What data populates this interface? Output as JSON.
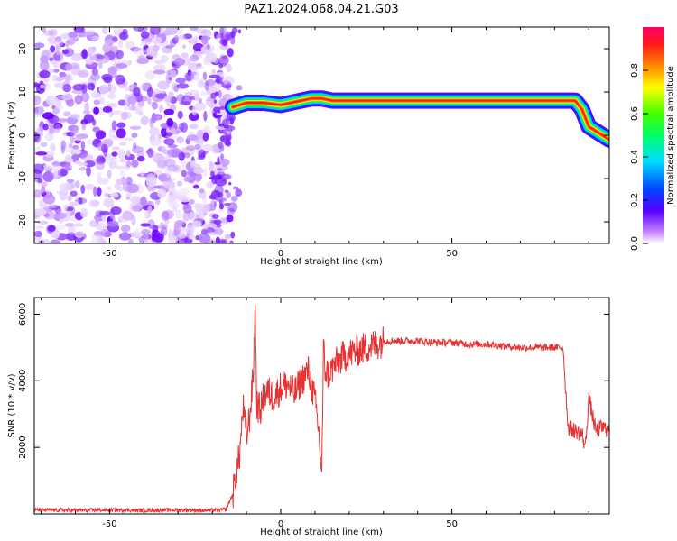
{
  "title": "PAZ1.2024.068.04.21.G03",
  "chart_data": [
    {
      "type": "heatmap",
      "xlabel": "Height of straight line (km)",
      "ylabel": "Frequency (Hz)",
      "xlim": [
        -72,
        96
      ],
      "ylim": [
        -25,
        25
      ],
      "xticks": [
        -50,
        0,
        50
      ],
      "yticks": [
        -20,
        -10,
        0,
        10,
        20
      ],
      "noise_region_x": [
        -72,
        -14
      ],
      "signal_ridge": {
        "x": [
          -14,
          -10,
          -5,
          0,
          3,
          6,
          9,
          12,
          15,
          20,
          30,
          50,
          70,
          82,
          86,
          88,
          90,
          92,
          94,
          96
        ],
        "frequency": [
          6.5,
          7.5,
          7.5,
          7,
          7.5,
          8,
          8.5,
          8.5,
          8,
          8,
          8,
          8,
          8,
          8,
          8,
          6,
          2,
          1,
          0,
          -1
        ]
      },
      "colorbar": {
        "label": "Normalized spectral amplitude",
        "ticks": [
          0.0,
          0.2,
          0.4,
          0.6,
          0.8
        ],
        "range": [
          0,
          1
        ],
        "colors": [
          "#ffffff",
          "#cc66ff",
          "#4400ff",
          "#0066ff",
          "#00ffff",
          "#00ff00",
          "#ffff00",
          "#ff6600",
          "#ff0033",
          "#ff0066"
        ]
      }
    },
    {
      "type": "line",
      "xlabel": "Height of straight line (km)",
      "ylabel": "SNR (10 * v/v)",
      "xlim": [
        -72,
        96
      ],
      "ylim": [
        0,
        6500
      ],
      "xticks": [
        -50,
        0,
        50
      ],
      "yticks": [
        2000,
        4000,
        6000
      ],
      "color": "#e53232",
      "series": [
        {
          "x": [
            -72,
            -60,
            -50,
            -40,
            -30,
            -20,
            -16,
            -14,
            -12,
            -11,
            -10,
            -9,
            -8,
            -7.5,
            -7,
            -6,
            -5,
            -4,
            -2,
            0,
            2,
            4,
            6,
            8,
            10,
            11,
            12,
            12.5,
            13,
            14,
            16,
            18,
            20,
            22,
            25,
            28,
            30,
            35,
            40,
            45,
            50,
            55,
            60,
            65,
            70,
            75,
            80,
            82.5,
            83,
            84,
            86,
            88,
            89,
            90,
            92,
            94,
            96
          ],
          "values": [
            120,
            110,
            120,
            110,
            120,
            110,
            130,
            600,
            1800,
            3200,
            2300,
            3000,
            4200,
            6400,
            3300,
            3100,
            3500,
            3700,
            3500,
            3800,
            3900,
            3600,
            4000,
            4300,
            3400,
            2600,
            1200,
            5000,
            4300,
            4200,
            4500,
            4700,
            4800,
            4900,
            5000,
            5100,
            5200,
            5200,
            5200,
            5150,
            5150,
            5100,
            5100,
            5050,
            5000,
            5000,
            5000,
            5000,
            4100,
            2600,
            2500,
            2400,
            2000,
            3500,
            2500,
            2600,
            2500
          ]
        }
      ]
    }
  ]
}
